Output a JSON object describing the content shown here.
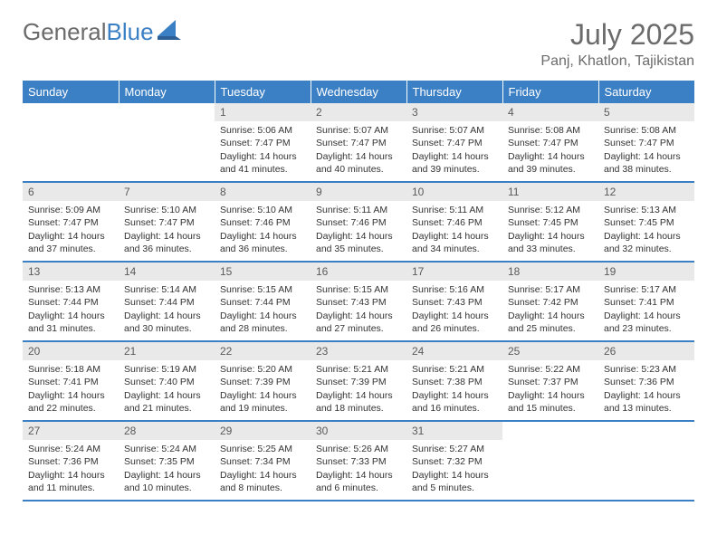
{
  "brand": {
    "name_part1": "General",
    "name_part2": "Blue"
  },
  "title": "July 2025",
  "location": "Panj, Khatlon, Tajikistan",
  "colors": {
    "header_bg": "#3b7fc4",
    "header_text": "#ffffff",
    "daynum_bg": "#e9e9e9",
    "text": "#333333",
    "muted": "#6b6b6b",
    "page_bg": "#ffffff"
  },
  "calendar": {
    "day_labels": [
      "Sunday",
      "Monday",
      "Tuesday",
      "Wednesday",
      "Thursday",
      "Friday",
      "Saturday"
    ],
    "weeks": [
      [
        {
          "empty": true
        },
        {
          "empty": true
        },
        {
          "day": "1",
          "sunrise": "Sunrise: 5:06 AM",
          "sunset": "Sunset: 7:47 PM",
          "daylight": "Daylight: 14 hours and 41 minutes."
        },
        {
          "day": "2",
          "sunrise": "Sunrise: 5:07 AM",
          "sunset": "Sunset: 7:47 PM",
          "daylight": "Daylight: 14 hours and 40 minutes."
        },
        {
          "day": "3",
          "sunrise": "Sunrise: 5:07 AM",
          "sunset": "Sunset: 7:47 PM",
          "daylight": "Daylight: 14 hours and 39 minutes."
        },
        {
          "day": "4",
          "sunrise": "Sunrise: 5:08 AM",
          "sunset": "Sunset: 7:47 PM",
          "daylight": "Daylight: 14 hours and 39 minutes."
        },
        {
          "day": "5",
          "sunrise": "Sunrise: 5:08 AM",
          "sunset": "Sunset: 7:47 PM",
          "daylight": "Daylight: 14 hours and 38 minutes."
        }
      ],
      [
        {
          "day": "6",
          "sunrise": "Sunrise: 5:09 AM",
          "sunset": "Sunset: 7:47 PM",
          "daylight": "Daylight: 14 hours and 37 minutes."
        },
        {
          "day": "7",
          "sunrise": "Sunrise: 5:10 AM",
          "sunset": "Sunset: 7:47 PM",
          "daylight": "Daylight: 14 hours and 36 minutes."
        },
        {
          "day": "8",
          "sunrise": "Sunrise: 5:10 AM",
          "sunset": "Sunset: 7:46 PM",
          "daylight": "Daylight: 14 hours and 36 minutes."
        },
        {
          "day": "9",
          "sunrise": "Sunrise: 5:11 AM",
          "sunset": "Sunset: 7:46 PM",
          "daylight": "Daylight: 14 hours and 35 minutes."
        },
        {
          "day": "10",
          "sunrise": "Sunrise: 5:11 AM",
          "sunset": "Sunset: 7:46 PM",
          "daylight": "Daylight: 14 hours and 34 minutes."
        },
        {
          "day": "11",
          "sunrise": "Sunrise: 5:12 AM",
          "sunset": "Sunset: 7:45 PM",
          "daylight": "Daylight: 14 hours and 33 minutes."
        },
        {
          "day": "12",
          "sunrise": "Sunrise: 5:13 AM",
          "sunset": "Sunset: 7:45 PM",
          "daylight": "Daylight: 14 hours and 32 minutes."
        }
      ],
      [
        {
          "day": "13",
          "sunrise": "Sunrise: 5:13 AM",
          "sunset": "Sunset: 7:44 PM",
          "daylight": "Daylight: 14 hours and 31 minutes."
        },
        {
          "day": "14",
          "sunrise": "Sunrise: 5:14 AM",
          "sunset": "Sunset: 7:44 PM",
          "daylight": "Daylight: 14 hours and 30 minutes."
        },
        {
          "day": "15",
          "sunrise": "Sunrise: 5:15 AM",
          "sunset": "Sunset: 7:44 PM",
          "daylight": "Daylight: 14 hours and 28 minutes."
        },
        {
          "day": "16",
          "sunrise": "Sunrise: 5:15 AM",
          "sunset": "Sunset: 7:43 PM",
          "daylight": "Daylight: 14 hours and 27 minutes."
        },
        {
          "day": "17",
          "sunrise": "Sunrise: 5:16 AM",
          "sunset": "Sunset: 7:43 PM",
          "daylight": "Daylight: 14 hours and 26 minutes."
        },
        {
          "day": "18",
          "sunrise": "Sunrise: 5:17 AM",
          "sunset": "Sunset: 7:42 PM",
          "daylight": "Daylight: 14 hours and 25 minutes."
        },
        {
          "day": "19",
          "sunrise": "Sunrise: 5:17 AM",
          "sunset": "Sunset: 7:41 PM",
          "daylight": "Daylight: 14 hours and 23 minutes."
        }
      ],
      [
        {
          "day": "20",
          "sunrise": "Sunrise: 5:18 AM",
          "sunset": "Sunset: 7:41 PM",
          "daylight": "Daylight: 14 hours and 22 minutes."
        },
        {
          "day": "21",
          "sunrise": "Sunrise: 5:19 AM",
          "sunset": "Sunset: 7:40 PM",
          "daylight": "Daylight: 14 hours and 21 minutes."
        },
        {
          "day": "22",
          "sunrise": "Sunrise: 5:20 AM",
          "sunset": "Sunset: 7:39 PM",
          "daylight": "Daylight: 14 hours and 19 minutes."
        },
        {
          "day": "23",
          "sunrise": "Sunrise: 5:21 AM",
          "sunset": "Sunset: 7:39 PM",
          "daylight": "Daylight: 14 hours and 18 minutes."
        },
        {
          "day": "24",
          "sunrise": "Sunrise: 5:21 AM",
          "sunset": "Sunset: 7:38 PM",
          "daylight": "Daylight: 14 hours and 16 minutes."
        },
        {
          "day": "25",
          "sunrise": "Sunrise: 5:22 AM",
          "sunset": "Sunset: 7:37 PM",
          "daylight": "Daylight: 14 hours and 15 minutes."
        },
        {
          "day": "26",
          "sunrise": "Sunrise: 5:23 AM",
          "sunset": "Sunset: 7:36 PM",
          "daylight": "Daylight: 14 hours and 13 minutes."
        }
      ],
      [
        {
          "day": "27",
          "sunrise": "Sunrise: 5:24 AM",
          "sunset": "Sunset: 7:36 PM",
          "daylight": "Daylight: 14 hours and 11 minutes."
        },
        {
          "day": "28",
          "sunrise": "Sunrise: 5:24 AM",
          "sunset": "Sunset: 7:35 PM",
          "daylight": "Daylight: 14 hours and 10 minutes."
        },
        {
          "day": "29",
          "sunrise": "Sunrise: 5:25 AM",
          "sunset": "Sunset: 7:34 PM",
          "daylight": "Daylight: 14 hours and 8 minutes."
        },
        {
          "day": "30",
          "sunrise": "Sunrise: 5:26 AM",
          "sunset": "Sunset: 7:33 PM",
          "daylight": "Daylight: 14 hours and 6 minutes."
        },
        {
          "day": "31",
          "sunrise": "Sunrise: 5:27 AM",
          "sunset": "Sunset: 7:32 PM",
          "daylight": "Daylight: 14 hours and 5 minutes."
        },
        {
          "empty": true
        },
        {
          "empty": true
        }
      ]
    ]
  }
}
